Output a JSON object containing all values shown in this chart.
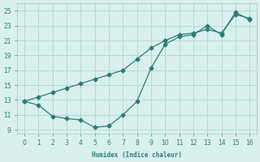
{
  "xlabel": "Humidex (Indice chaleur)",
  "line1_x": [
    0,
    1,
    2,
    3,
    4,
    5,
    6,
    7,
    8,
    9,
    10,
    11,
    12,
    13,
    14,
    15,
    16
  ],
  "line1_y": [
    12.8,
    12.3,
    10.8,
    10.5,
    10.3,
    9.3,
    9.5,
    11.0,
    12.8,
    17.3,
    20.5,
    21.5,
    21.8,
    23.0,
    21.8,
    24.8,
    23.8
  ],
  "line2_x": [
    0,
    1,
    2,
    3,
    4,
    5,
    6,
    7,
    8,
    9,
    10,
    11,
    12,
    13,
    14,
    15,
    16
  ],
  "line2_y": [
    12.8,
    13.4,
    14.0,
    14.6,
    15.2,
    15.8,
    16.4,
    17.0,
    18.5,
    20.0,
    21.0,
    21.8,
    22.0,
    22.5,
    22.0,
    24.5,
    24.0
  ],
  "line_color": "#2d7d6e",
  "bg_color": "#d8f0ee",
  "grid_color": "#b8d8d4",
  "tick_color": "#2d7d6e",
  "spine_color": "#a0c4c0",
  "xlim": [
    -0.5,
    16.5
  ],
  "ylim": [
    8.5,
    26.0
  ],
  "yticks": [
    9,
    11,
    13,
    15,
    17,
    19,
    21,
    23,
    25
  ],
  "xticks": [
    0,
    1,
    2,
    3,
    4,
    5,
    6,
    7,
    8,
    9,
    10,
    11,
    12,
    13,
    14,
    15,
    16
  ],
  "figsize": [
    3.2,
    2.0
  ],
  "dpi": 100
}
